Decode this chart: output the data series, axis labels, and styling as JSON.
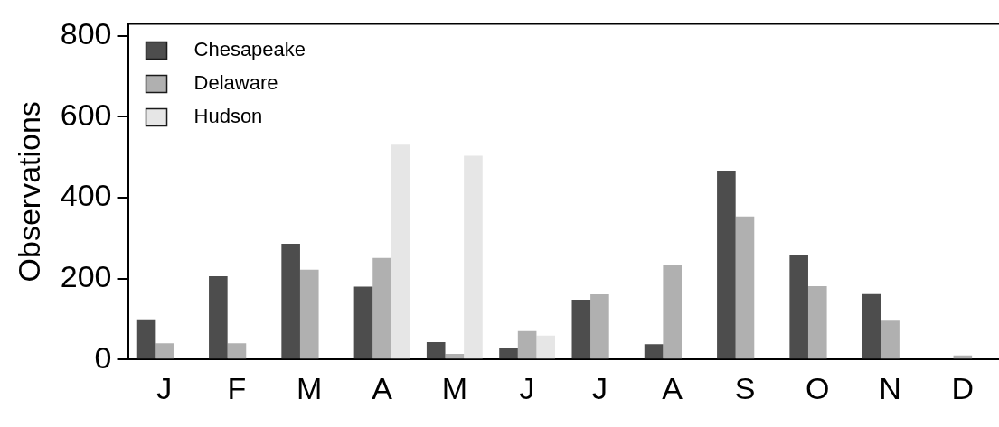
{
  "chart_data": {
    "type": "bar",
    "ylabel": "Observations",
    "categories": [
      "J",
      "F",
      "M",
      "A",
      "M",
      "J",
      "J",
      "A",
      "S",
      "O",
      "N",
      "D"
    ],
    "series": [
      {
        "name": "Chesapeake",
        "color": "#4d4d4d",
        "values": [
          99,
          206,
          286,
          180,
          43,
          28,
          148,
          38,
          467,
          258,
          162,
          0
        ]
      },
      {
        "name": "Delaware",
        "color": "#b0b0b0",
        "values": [
          40,
          40,
          222,
          251,
          14,
          70,
          161,
          235,
          354,
          181,
          96,
          10
        ]
      },
      {
        "name": "Hudson",
        "color": "#e6e6e6",
        "values": [
          null,
          null,
          null,
          531,
          504,
          59,
          null,
          null,
          null,
          null,
          null,
          null
        ]
      }
    ],
    "ylim": [
      0,
      830
    ],
    "yticks": [
      0,
      200,
      400,
      600,
      800
    ],
    "grid": false,
    "legend": "top left"
  }
}
